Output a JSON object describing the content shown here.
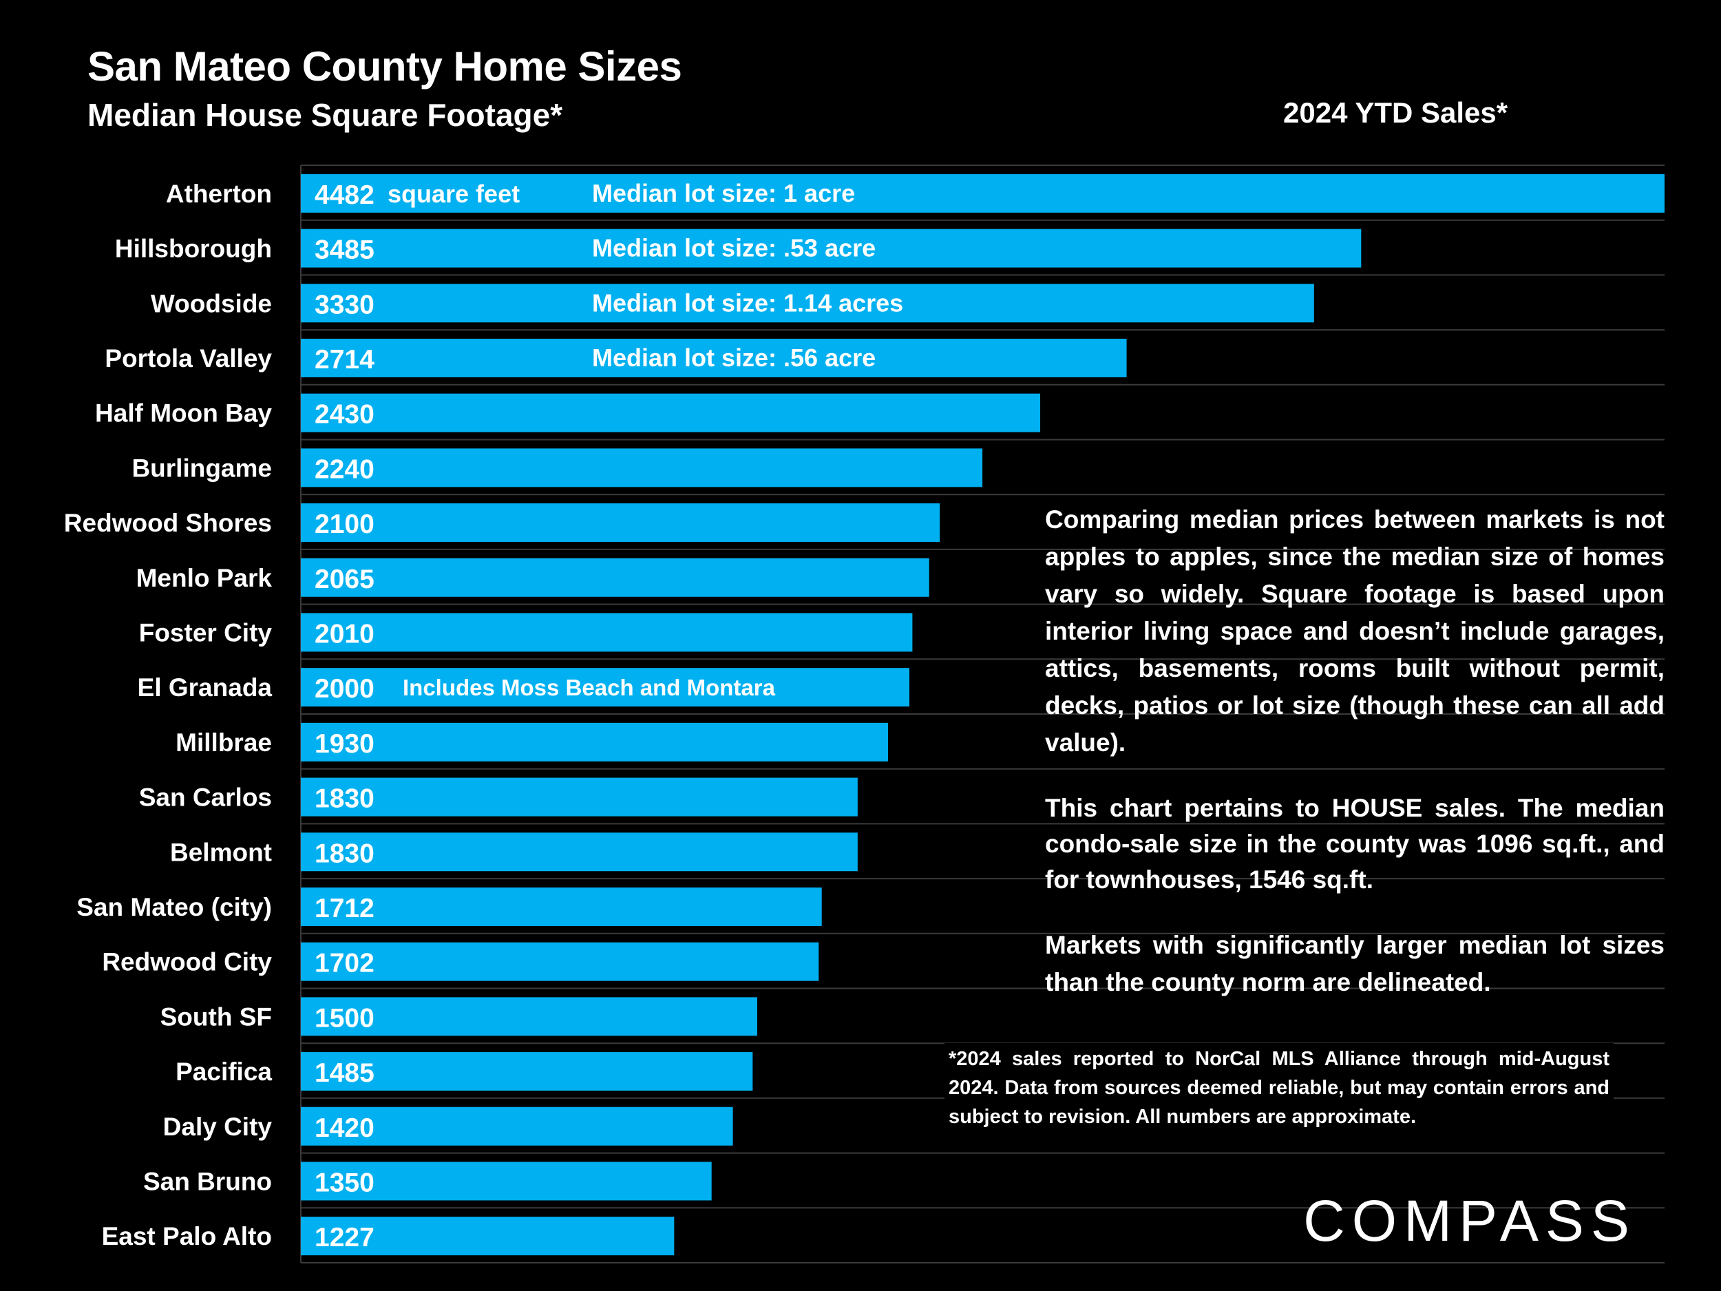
{
  "header": {
    "title": "San Mateo County Home Sizes",
    "subtitle": "Median House Square Footage*",
    "period": "2024 YTD Sales*"
  },
  "chart_data": {
    "type": "bar",
    "orientation": "horizontal",
    "title": "San Mateo County Home Sizes",
    "subtitle": "Median House Square Footage*",
    "unit": "square feet",
    "categories": [
      "Atherton",
      "Hillsborough",
      "Woodside",
      "Portola Valley",
      "Half Moon Bay",
      "Burlingame",
      "Redwood Shores",
      "Menlo Park",
      "Foster City",
      "El Granada",
      "Millbrae",
      "San Carlos",
      "Belmont",
      "San Mateo (city)",
      "Redwood City",
      "South SF",
      "Pacifica",
      "Daly City",
      "San Bruno",
      "East Palo Alto"
    ],
    "values": [
      4482,
      3485,
      3330,
      2714,
      2430,
      2240,
      2100,
      2065,
      2010,
      2000,
      1930,
      1830,
      1830,
      1712,
      1702,
      1500,
      1485,
      1420,
      1350,
      1227
    ],
    "xlim": [
      0,
      4482
    ],
    "bar_color": "#00b0f0",
    "grid": true,
    "unit_annotation": {
      "category": "Atherton",
      "text": "square feet"
    },
    "annotations": [
      {
        "category": "Atherton",
        "text": "Median lot size:  1 acre"
      },
      {
        "category": "Hillsborough",
        "text": "Median lot size:  .53 acre"
      },
      {
        "category": "Woodside",
        "text": "Median lot size:  1.14 acres"
      },
      {
        "category": "Portola Valley",
        "text": "Median lot size:  .56 acre"
      },
      {
        "category": "El Granada",
        "text": "Includes Moss Beach and Montara"
      }
    ]
  },
  "notes": [
    "Comparing median prices between markets is not apples to apples, since the median size of homes vary so widely. Square footage is based upon interior living space and doesn’t include garages, attics, basements, rooms built without permit, decks, patios or lot size (though these can all add value).",
    "This chart pertains to HOUSE sales. The median condo-sale size in the county was 1096 sq.ft., and for townhouses, 1546 sq.ft.",
    "Markets with significantly larger median lot sizes than the county norm are delineated."
  ],
  "footnote": "*2024 sales reported to NorCal MLS Alliance through mid-August 2024. Data from sources deemed reliable, but may contain errors and subject to revision. All numbers are approximate.",
  "brand": {
    "logo_text": "COMPASS",
    "colors": {
      "background": "#000000",
      "bar": "#00b0f0",
      "text": "#ffffff",
      "grid": "#3a3a3a"
    }
  }
}
